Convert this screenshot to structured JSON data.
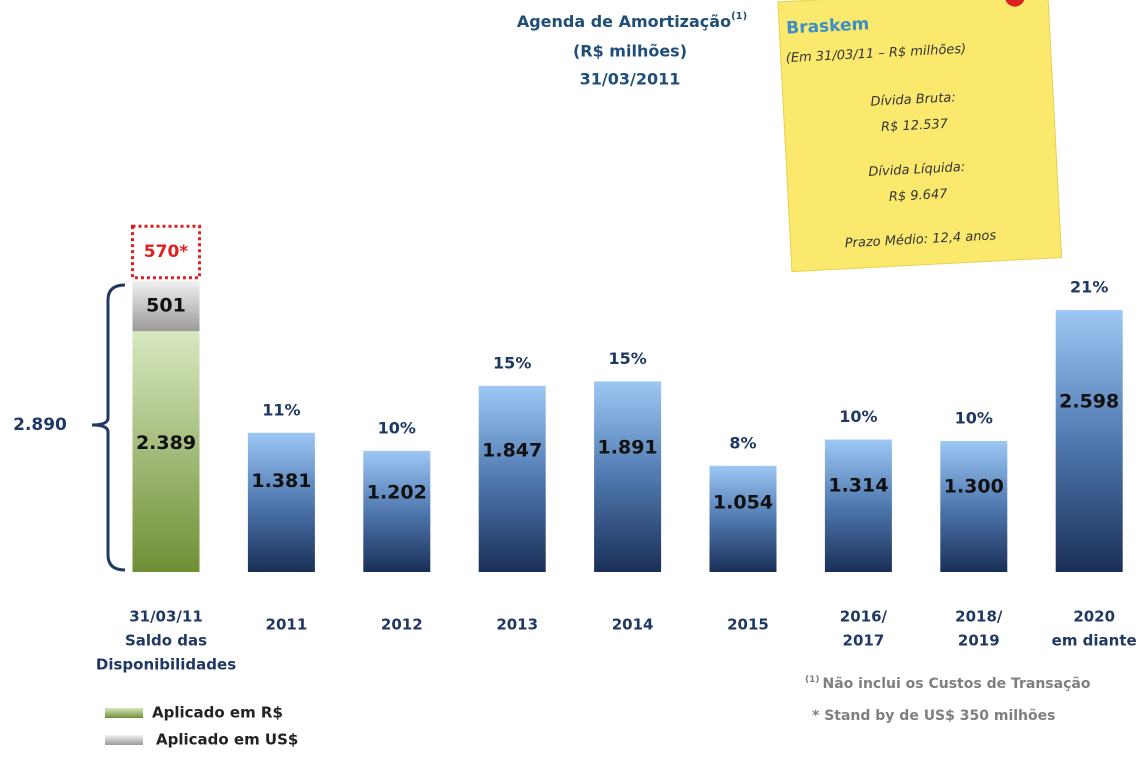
{
  "chart_data": {
    "type": "bar",
    "title": [
      "Agenda de Amortização",
      "(R$ milhões)",
      "31/03/2011"
    ],
    "title_note": "(1)",
    "categories": [
      [
        "31/03/11",
        "Saldo das",
        "Disponibilidades"
      ],
      [
        "2011"
      ],
      [
        "2012"
      ],
      [
        "2013"
      ],
      [
        "2014"
      ],
      [
        "2015"
      ],
      [
        "2016/",
        "2017"
      ],
      [
        "2018/",
        "2019"
      ],
      [
        "2020",
        "em diante"
      ]
    ],
    "series": [
      {
        "name": "Aplicado em R$",
        "color": "#7f9d45",
        "values": [
          2389,
          null,
          null,
          null,
          null,
          null,
          null,
          null,
          null
        ],
        "value_labels": [
          "2.389",
          null,
          null,
          null,
          null,
          null,
          null,
          null,
          null
        ]
      },
      {
        "name": "Aplicado em US$",
        "color": "#a6a6a6",
        "values": [
          501,
          null,
          null,
          null,
          null,
          null,
          null,
          null,
          null
        ],
        "value_labels": [
          "501",
          null,
          null,
          null,
          null,
          null,
          null,
          null,
          null
        ]
      },
      {
        "color": "#3c6aa8",
        "values": [
          null,
          1381,
          1202,
          1847,
          1891,
          1054,
          1314,
          1300,
          2598
        ],
        "value_labels": [
          null,
          "1.381",
          "1.202",
          "1.847",
          "1.891",
          "1.054",
          "1.314",
          "1.300",
          "2.598"
        ],
        "share_labels": [
          null,
          "11%",
          "10%",
          "15%",
          "15%",
          "8%",
          "10%",
          "10%",
          "21%"
        ]
      }
    ],
    "standby": {
      "value": 570,
      "label": "570*",
      "color": "#e0201f"
    },
    "total": {
      "value": 2890,
      "label": "2.890"
    },
    "footnotes": {
      "mark": "(1)",
      "lines": [
        "Não inclui os Custos de Transação",
        "* Stand by de US$ 350 milhões"
      ]
    },
    "note": {
      "brand": "Braskem",
      "lines": [
        "(Em 31/03/11 – R$ milhões)",
        "Dívida Bruta:",
        "R$ 12.537",
        "Dívida Líquida:",
        "R$ 9.647",
        "Prazo Médio: 12,4 anos"
      ]
    }
  }
}
